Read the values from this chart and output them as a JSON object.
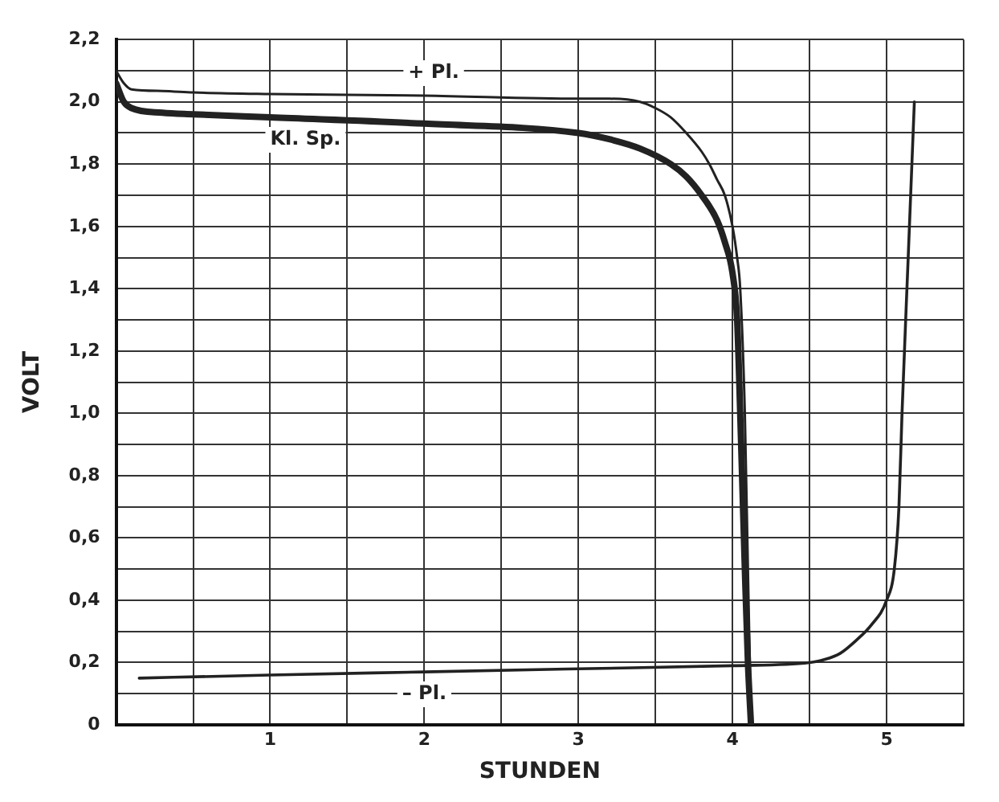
{
  "chart_data": {
    "type": "line",
    "xlabel": "STUNDEN",
    "ylabel": "VOLT",
    "xlim": [
      0,
      5.5
    ],
    "ylim": [
      0,
      2.2
    ],
    "xticks": [
      {
        "value": 0,
        "label": null
      },
      {
        "value": 0.5,
        "label": null
      },
      1,
      {
        "value": 1.5,
        "label": null
      },
      2,
      {
        "value": 2.5,
        "label": null
      },
      3,
      {
        "value": 3.5,
        "label": null
      },
      4,
      {
        "value": 4.5,
        "label": null
      },
      5,
      {
        "value": 5.5,
        "label": null
      }
    ],
    "yticks": [
      {
        "value": 0,
        "label": "0"
      },
      {
        "value": 0.1,
        "label": null
      },
      {
        "value": 0.2,
        "label": "0,2"
      },
      {
        "value": 0.3,
        "label": null
      },
      {
        "value": 0.4,
        "label": "0,4"
      },
      {
        "value": 0.5,
        "label": null
      },
      {
        "value": 0.6,
        "label": "0,6"
      },
      {
        "value": 0.7,
        "label": null
      },
      {
        "value": 0.8,
        "label": "0,8"
      },
      {
        "value": 0.9,
        "label": null
      },
      {
        "value": 1.0,
        "label": "1,0"
      },
      {
        "value": 1.1,
        "label": null
      },
      {
        "value": 1.2,
        "label": "1,2"
      },
      {
        "value": 1.3,
        "label": null
      },
      {
        "value": 1.4,
        "label": "1,4"
      },
      {
        "value": 1.5,
        "label": null
      },
      {
        "value": 1.6,
        "label": "1,6"
      },
      {
        "value": 1.7,
        "label": null
      },
      {
        "value": 1.8,
        "label": "1,8"
      },
      {
        "value": 1.9,
        "label": null
      },
      {
        "value": 2.0,
        "label": "2,0"
      },
      {
        "value": 2.1,
        "label": null
      },
      {
        "value": 2.2,
        "label": "2,2"
      }
    ],
    "grid": true,
    "legend": false,
    "marker": "none",
    "line_style": "solid",
    "series": [
      {
        "name": "+ Pl.",
        "color": "#222222",
        "x": [
          0,
          0.05,
          0.1,
          0.3,
          0.5,
          1,
          2,
          3,
          3.2,
          3.4,
          3.5,
          3.6,
          3.7,
          3.8,
          3.85,
          3.9,
          3.95,
          4.0,
          4.03,
          4.05,
          4.08,
          4.1,
          4.12
        ],
        "values": [
          2.1,
          2.06,
          2.04,
          2.035,
          2.03,
          2.025,
          2.02,
          2.01,
          2.01,
          2.0,
          1.98,
          1.95,
          1.9,
          1.84,
          1.8,
          1.75,
          1.7,
          1.6,
          1.5,
          1.4,
          1.0,
          0.5,
          0
        ]
      },
      {
        "name": "Kl. Sp.",
        "color": "#222222",
        "x": [
          0,
          0.05,
          0.1,
          0.3,
          0.5,
          1,
          2,
          3,
          3.2,
          3.4,
          3.6,
          3.7,
          3.8,
          3.9,
          3.95,
          4.0,
          4.03,
          4.05,
          4.08,
          4.1,
          4.12
        ],
        "values": [
          2.06,
          2.0,
          1.98,
          1.965,
          1.96,
          1.95,
          1.93,
          1.9,
          1.88,
          1.85,
          1.8,
          1.76,
          1.7,
          1.62,
          1.55,
          1.45,
          1.3,
          1.0,
          0.5,
          0.2,
          0
        ]
      },
      {
        "name": "– Pl.",
        "color": "#222222",
        "x": [
          0.15,
          1,
          2,
          3,
          4,
          4.5,
          4.6,
          4.7,
          4.8,
          4.9,
          5.0,
          5.05,
          5.08,
          5.1,
          5.14,
          5.18
        ],
        "values": [
          0.15,
          0.16,
          0.17,
          0.18,
          0.19,
          0.2,
          0.21,
          0.23,
          0.27,
          0.32,
          0.4,
          0.5,
          0.7,
          1.0,
          1.5,
          2.0
        ]
      }
    ]
  }
}
